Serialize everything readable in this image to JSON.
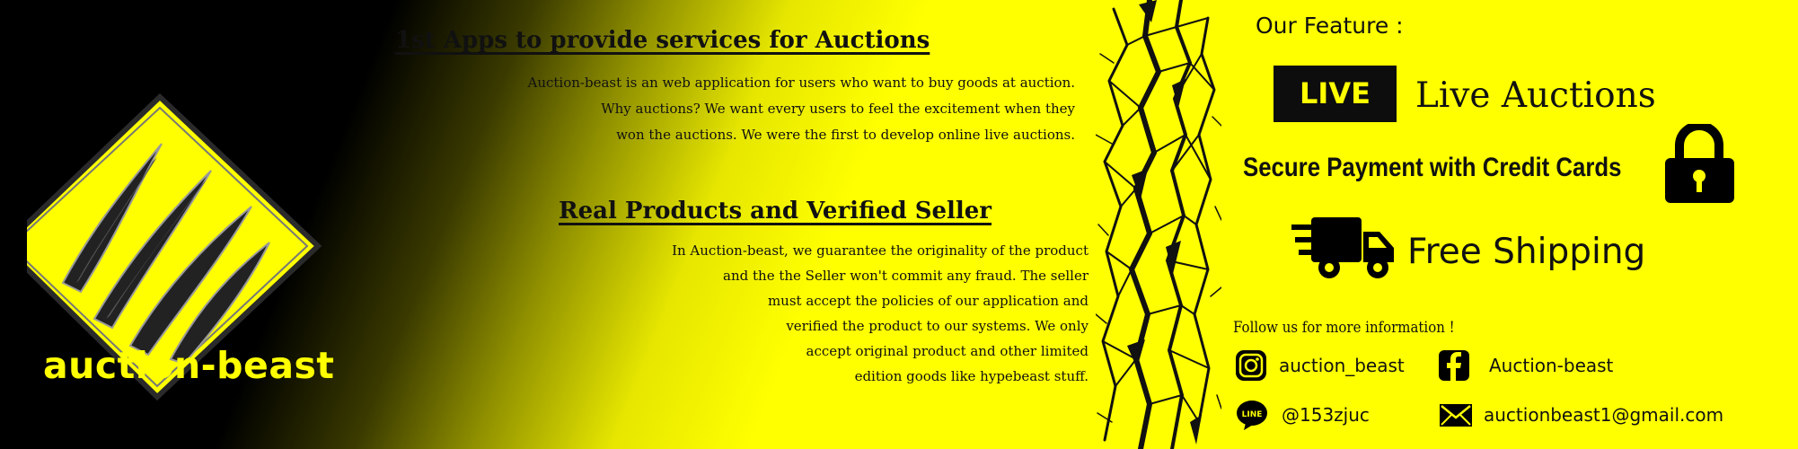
{
  "brand": {
    "name": "auction-beast",
    "logo_icon": "claw-scratch-diamond-icon",
    "colors": {
      "yellow": "#ffff00",
      "black": "#000000"
    }
  },
  "section1": {
    "heading": "1st Apps to provide services for Auctions",
    "lines": [
      "Auction-beast is an web application for users who want to buy goods at auction.",
      "Why auctions? We want every users to feel the excitement when they",
      "won the auctions. We were the first to develop online live auctions."
    ]
  },
  "section2": {
    "heading": "Real Products and Verified Seller",
    "lines": [
      "In Auction-beast, we guarantee the originality of the product",
      "and the the Seller won't commit any fraud. The seller",
      "must accept the policies of our application and",
      "verified the product to our systems. We only",
      "accept original product and other limited",
      "edition goods like hypebeast stuff."
    ]
  },
  "features": {
    "title": "Our Feature :",
    "live_badge": "LIVE",
    "live_label": "Live Auctions",
    "secure_label": "Secure Payment with Credit Cards",
    "secure_icon": "lock-icon",
    "shipping_label": "Free Shipping",
    "shipping_icon": "delivery-truck-icon"
  },
  "contact": {
    "follow_text": "Follow us for more information !",
    "instagram": "auction_beast",
    "facebook": "Auction-beast",
    "line": "@153zjuc",
    "email": "auctionbeast1@gmail.com"
  }
}
